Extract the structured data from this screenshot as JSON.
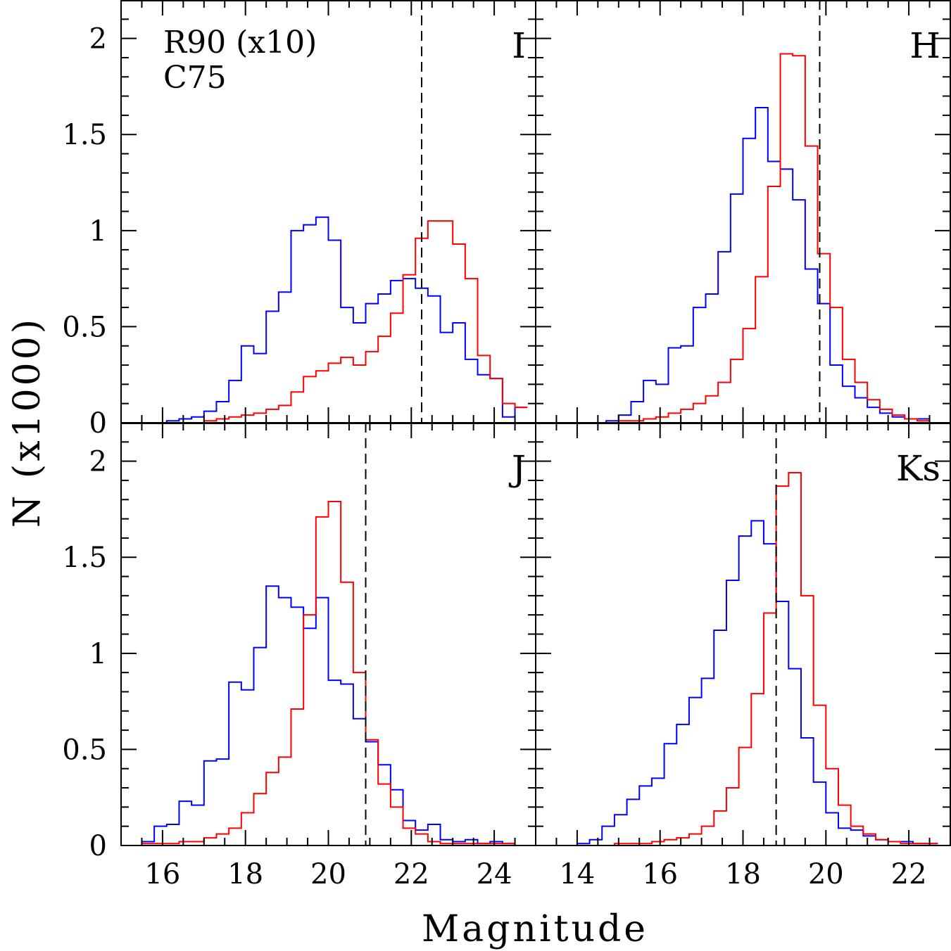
{
  "figure": {
    "xlabel": "Magnitude",
    "ylabel": "N (x1000)",
    "legend": [
      {
        "label": "R90 (x10)",
        "color": "#0000ff"
      },
      {
        "label": "C75",
        "color": "#ff0000"
      }
    ],
    "y_ticks": [
      {
        "value": 0,
        "label": "0"
      },
      {
        "value": 0.5,
        "label": "0.5"
      },
      {
        "value": 1,
        "label": "1"
      },
      {
        "value": 1.5,
        "label": "1.5"
      },
      {
        "value": 2,
        "label": "2"
      }
    ]
  },
  "chart_data": [
    {
      "type": "histogram",
      "band": "I",
      "xlim": [
        15,
        25
      ],
      "ylim": [
        0,
        2.2
      ],
      "x_tick_labels": [
        "16",
        "18",
        "20",
        "22",
        "24"
      ],
      "x_ticks": [
        16,
        18,
        20,
        22,
        24
      ],
      "limit_line_x": 22.25,
      "bin_start": 16.1,
      "bin_width": 0.3,
      "series": [
        {
          "name": "R90 (x10)",
          "color": "#0000ff",
          "values": [
            0.01,
            0.02,
            0.03,
            0.06,
            0.11,
            0.22,
            0.4,
            0.36,
            0.58,
            0.68,
            1.0,
            1.03,
            1.07,
            0.95,
            0.6,
            0.52,
            0.62,
            0.67,
            0.74,
            0.75,
            0.7,
            0.66,
            0.47,
            0.52,
            0.33,
            0.25,
            0.23,
            0.03,
            0.08
          ]
        },
        {
          "name": "C75",
          "color": "#ff0000",
          "values": [
            0,
            0,
            0,
            0.01,
            0.02,
            0.03,
            0.04,
            0.05,
            0.07,
            0.09,
            0.16,
            0.24,
            0.27,
            0.31,
            0.34,
            0.3,
            0.37,
            0.45,
            0.57,
            0.77,
            0.96,
            1.05,
            1.05,
            0.93,
            0.75,
            0.35,
            0.23,
            0.1,
            0.08
          ]
        }
      ]
    },
    {
      "type": "histogram",
      "band": "H",
      "xlim": [
        13,
        23
      ],
      "ylim": [
        0,
        2.2
      ],
      "x_tick_labels": [
        "14",
        "16",
        "18",
        "20",
        "22"
      ],
      "x_ticks": [
        14,
        16,
        18,
        20,
        22
      ],
      "limit_line_x": 19.85,
      "bin_start": 14.7,
      "bin_width": 0.3,
      "series": [
        {
          "name": "R90 (x10)",
          "color": "#0000ff",
          "values": [
            0.01,
            0.04,
            0.11,
            0.22,
            0.2,
            0.39,
            0.4,
            0.6,
            0.67,
            0.89,
            1.19,
            1.48,
            1.64,
            1.36,
            1.32,
            1.16,
            0.8,
            0.62,
            0.3,
            0.19,
            0.13,
            0.08,
            0.05,
            0.03,
            0.02,
            0.02
          ]
        },
        {
          "name": "C75",
          "color": "#ff0000",
          "values": [
            0,
            0.01,
            0.01,
            0.02,
            0.03,
            0.05,
            0.07,
            0.1,
            0.14,
            0.21,
            0.33,
            0.49,
            0.76,
            1.23,
            1.92,
            1.91,
            1.44,
            0.88,
            0.6,
            0.33,
            0.21,
            0.12,
            0.07,
            0.04,
            0.02,
            0.01
          ]
        }
      ]
    },
    {
      "type": "histogram",
      "band": "J",
      "xlim": [
        15,
        25
      ],
      "ylim": [
        0,
        2.2
      ],
      "x_tick_labels": [
        "16",
        "18",
        "20",
        "22",
        "24"
      ],
      "x_ticks": [
        16,
        18,
        20,
        22,
        24
      ],
      "limit_line_x": 20.9,
      "bin_start": 15.5,
      "bin_width": 0.3,
      "series": [
        {
          "name": "R90 (x10)",
          "color": "#0000ff",
          "values": [
            0.02,
            0.1,
            0.11,
            0.23,
            0.21,
            0.44,
            0.45,
            0.85,
            0.81,
            1.03,
            1.35,
            1.29,
            1.24,
            1.13,
            1.29,
            0.86,
            0.84,
            0.66,
            0.54,
            0.42,
            0.29,
            0.13,
            0.08,
            0.11,
            0.03,
            0.02,
            0.03,
            0.01,
            0.02,
            0.01
          ]
        },
        {
          "name": "C75",
          "color": "#ff0000",
          "values": [
            0.01,
            0.01,
            0.01,
            0.02,
            0.02,
            0.04,
            0.06,
            0.09,
            0.17,
            0.27,
            0.38,
            0.46,
            0.71,
            1.2,
            1.71,
            1.79,
            1.37,
            0.9,
            0.55,
            0.32,
            0.2,
            0.09,
            0.06,
            0.02,
            0.01,
            0.01,
            0.01,
            0.01,
            0.01,
            0.01
          ]
        }
      ]
    },
    {
      "type": "histogram",
      "band": "Ks",
      "xlim": [
        13,
        23
      ],
      "ylim": [
        0,
        2.2
      ],
      "x_tick_labels": [
        "14",
        "16",
        "18",
        "20",
        "22"
      ],
      "x_ticks": [
        14,
        16,
        18,
        20,
        22
      ],
      "limit_line_x": 18.8,
      "bin_start": 14.0,
      "bin_width": 0.3,
      "series": [
        {
          "name": "R90 (x10)",
          "color": "#0000ff",
          "values": [
            0.01,
            0.03,
            0.1,
            0.16,
            0.24,
            0.31,
            0.35,
            0.53,
            0.63,
            0.77,
            0.87,
            1.12,
            1.38,
            1.61,
            1.69,
            1.57,
            1.27,
            0.92,
            0.56,
            0.33,
            0.17,
            0.09,
            0.08,
            0.05,
            0.03,
            0.02,
            0.02,
            0.01,
            0.01
          ]
        },
        {
          "name": "C75",
          "color": "#ff0000",
          "values": [
            0,
            0,
            0,
            0.01,
            0.01,
            0.01,
            0.02,
            0.03,
            0.04,
            0.06,
            0.1,
            0.18,
            0.3,
            0.51,
            0.79,
            1.21,
            1.87,
            1.94,
            1.3,
            0.73,
            0.4,
            0.21,
            0.1,
            0.06,
            0.03,
            0.02,
            0.01,
            0.01,
            0.01
          ]
        }
      ]
    }
  ]
}
